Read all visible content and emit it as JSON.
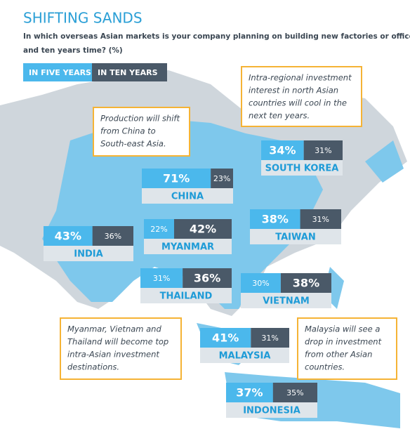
{
  "chart_data": {
    "type": "map",
    "title": "SHIFTING SANDS",
    "subtitle": [
      "In which overseas Asian markets is your company planning on building new factories or offices in five",
      "and ten years time? (%)"
    ],
    "categories": [
      "SOUTH KOREA",
      "CHINA",
      "INDIA",
      "MYANMAR",
      "TAIWAN",
      "THAILAND",
      "VIETNAM",
      "MALAYSIA",
      "INDONESIA"
    ],
    "series": [
      {
        "name": "IN FIVE YEARS",
        "color": "#4bb8ec",
        "values": [
          34,
          71,
          43,
          22,
          38,
          31,
          30,
          41,
          37
        ],
        "value_labels": [
          "34%",
          "71%",
          "43%",
          "22%",
          "38%",
          "31%",
          "30%",
          "41%",
          "37%"
        ]
      },
      {
        "name": "IN TEN YEARS",
        "color": "#4a5968",
        "values": [
          31,
          23,
          36,
          42,
          31,
          36,
          38,
          31,
          35
        ],
        "value_labels": [
          "31%",
          "23%",
          "36%",
          "42%",
          "31%",
          "36%",
          "38%",
          "31%",
          "35%"
        ]
      }
    ],
    "annotations": [
      [
        "Intra-regional investment",
        "interest in north Asian",
        "countries will cool in the",
        "next ten years."
      ],
      [
        "Production will shift",
        "from China to",
        "South-east Asia."
      ],
      [
        "Myanmar, Vietnam and",
        "Thailand will become top",
        "intra-Asian investment",
        "destinations."
      ],
      [
        "Malaysia will see a",
        "drop in investment",
        "from other Asian",
        "countries."
      ]
    ]
  }
}
